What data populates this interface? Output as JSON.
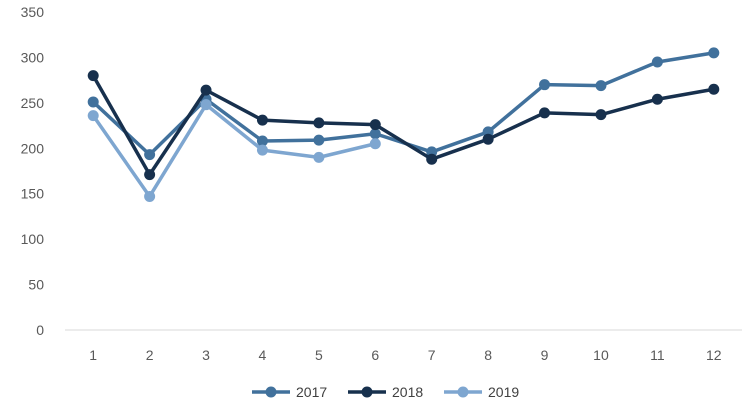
{
  "chart_data": {
    "type": "line",
    "title": "",
    "xlabel": "",
    "ylabel": "",
    "categories": [
      "1",
      "2",
      "3",
      "4",
      "5",
      "6",
      "7",
      "8",
      "9",
      "10",
      "11",
      "12"
    ],
    "ylim": [
      0,
      350
    ],
    "yticks": [
      "0",
      "50",
      "100",
      "150",
      "200",
      "250",
      "300",
      "350"
    ],
    "grid": false,
    "legend_position": "bottom",
    "series": [
      {
        "name": "2017",
        "color": "#41719c",
        "values": [
          251,
          193,
          254,
          208,
          209,
          216,
          196,
          218,
          270,
          269,
          295,
          305
        ]
      },
      {
        "name": "2018",
        "color": "#17304d",
        "values": [
          280,
          171,
          264,
          231,
          228,
          226,
          188,
          210,
          239,
          237,
          254,
          265
        ]
      },
      {
        "name": "2019",
        "color": "#7ea6d0",
        "values": [
          236,
          147,
          248,
          198,
          190,
          205,
          null,
          null,
          null,
          null,
          null,
          null
        ]
      }
    ]
  }
}
